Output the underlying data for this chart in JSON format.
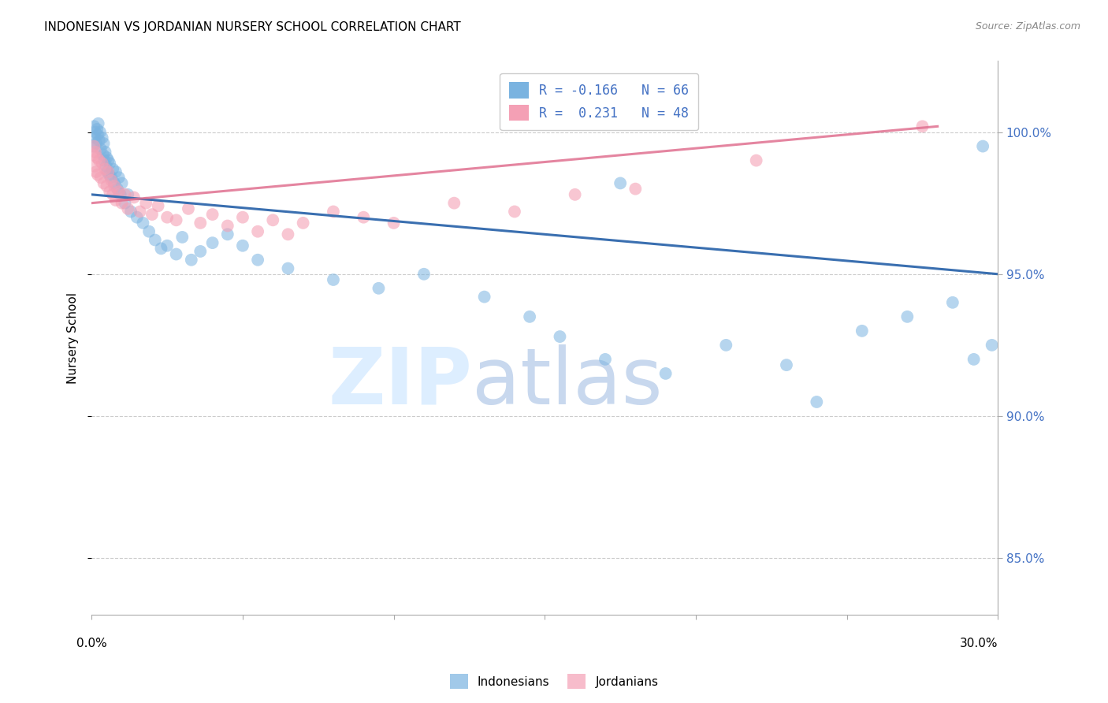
{
  "title": "INDONESIAN VS JORDANIAN NURSERY SCHOOL CORRELATION CHART",
  "source": "Source: ZipAtlas.com",
  "ylabel": "Nursery School",
  "x_min": 0.0,
  "x_max": 30.0,
  "y_min": 83.0,
  "y_max": 102.5,
  "y_ticks": [
    85.0,
    90.0,
    95.0,
    100.0
  ],
  "y_tick_labels": [
    "85.0%",
    "90.0%",
    "95.0%",
    "100.0%"
  ],
  "indonesian_color": "#7ab3e0",
  "jordanian_color": "#f4a0b5",
  "indonesian_line_color": "#3a6fb0",
  "jordanian_line_color": "#e07090",
  "watermark_color": "#ddeeff",
  "background_color": "#ffffff",
  "grid_color": "#cccccc",
  "indonesian_R": -0.166,
  "indonesian_N": 66,
  "jordanian_R": 0.231,
  "jordanian_N": 48,
  "legend_label_indo": "R = -0.166   N = 66",
  "legend_label_jord": "R =  0.231   N = 48",
  "bottom_label_indo": "Indonesians",
  "bottom_label_jord": "Jordanians",
  "indonesian_x": [
    0.05,
    0.08,
    0.1,
    0.12,
    0.15,
    0.18,
    0.2,
    0.22,
    0.25,
    0.28,
    0.3,
    0.35,
    0.38,
    0.4,
    0.42,
    0.45,
    0.48,
    0.5,
    0.52,
    0.55,
    0.58,
    0.6,
    0.65,
    0.7,
    0.75,
    0.8,
    0.85,
    0.9,
    0.95,
    1.0,
    1.1,
    1.2,
    1.3,
    1.5,
    1.7,
    1.9,
    2.1,
    2.3,
    2.5,
    2.8,
    3.0,
    3.3,
    3.6,
    4.0,
    4.5,
    5.0,
    5.5,
    6.5,
    8.0,
    9.5,
    11.0,
    13.0,
    14.5,
    15.5,
    17.0,
    19.0,
    21.0,
    23.0,
    24.0,
    25.5,
    27.0,
    28.5,
    29.5,
    29.8,
    17.5,
    29.2
  ],
  "indonesian_y": [
    99.5,
    100.2,
    99.8,
    100.0,
    99.6,
    100.1,
    99.9,
    100.3,
    99.7,
    100.0,
    99.4,
    99.8,
    99.2,
    99.6,
    99.0,
    99.3,
    98.8,
    99.1,
    98.6,
    99.0,
    98.5,
    98.9,
    98.4,
    98.7,
    98.2,
    98.6,
    98.0,
    98.4,
    97.8,
    98.2,
    97.5,
    97.8,
    97.2,
    97.0,
    96.8,
    96.5,
    96.2,
    95.9,
    96.0,
    95.7,
    96.3,
    95.5,
    95.8,
    96.1,
    96.4,
    96.0,
    95.5,
    95.2,
    94.8,
    94.5,
    95.0,
    94.2,
    93.5,
    92.8,
    92.0,
    91.5,
    92.5,
    91.8,
    90.5,
    93.0,
    93.5,
    94.0,
    99.5,
    92.5,
    98.2,
    92.0
  ],
  "jordanian_x": [
    0.05,
    0.08,
    0.1,
    0.12,
    0.15,
    0.18,
    0.2,
    0.25,
    0.3,
    0.35,
    0.4,
    0.45,
    0.5,
    0.55,
    0.6,
    0.65,
    0.7,
    0.75,
    0.8,
    0.9,
    1.0,
    1.1,
    1.2,
    1.4,
    1.6,
    1.8,
    2.0,
    2.2,
    2.5,
    2.8,
    3.2,
    3.6,
    4.0,
    4.5,
    5.0,
    5.5,
    6.0,
    6.5,
    7.0,
    8.0,
    9.0,
    10.0,
    12.0,
    14.0,
    16.0,
    18.0,
    22.0,
    27.5
  ],
  "jordanian_y": [
    99.2,
    99.5,
    98.8,
    99.3,
    98.6,
    99.1,
    98.5,
    99.0,
    98.4,
    98.9,
    98.2,
    98.7,
    98.1,
    98.6,
    97.9,
    98.3,
    97.8,
    98.1,
    97.6,
    97.9,
    97.5,
    97.8,
    97.3,
    97.7,
    97.2,
    97.5,
    97.1,
    97.4,
    97.0,
    96.9,
    97.3,
    96.8,
    97.1,
    96.7,
    97.0,
    96.5,
    96.9,
    96.4,
    96.8,
    97.2,
    97.0,
    96.8,
    97.5,
    97.2,
    97.8,
    98.0,
    99.0,
    100.2
  ],
  "indo_trend_x": [
    0.0,
    30.0
  ],
  "indo_trend_y": [
    97.8,
    95.0
  ],
  "jord_trend_x": [
    0.0,
    28.0
  ],
  "jord_trend_y": [
    97.5,
    100.2
  ]
}
